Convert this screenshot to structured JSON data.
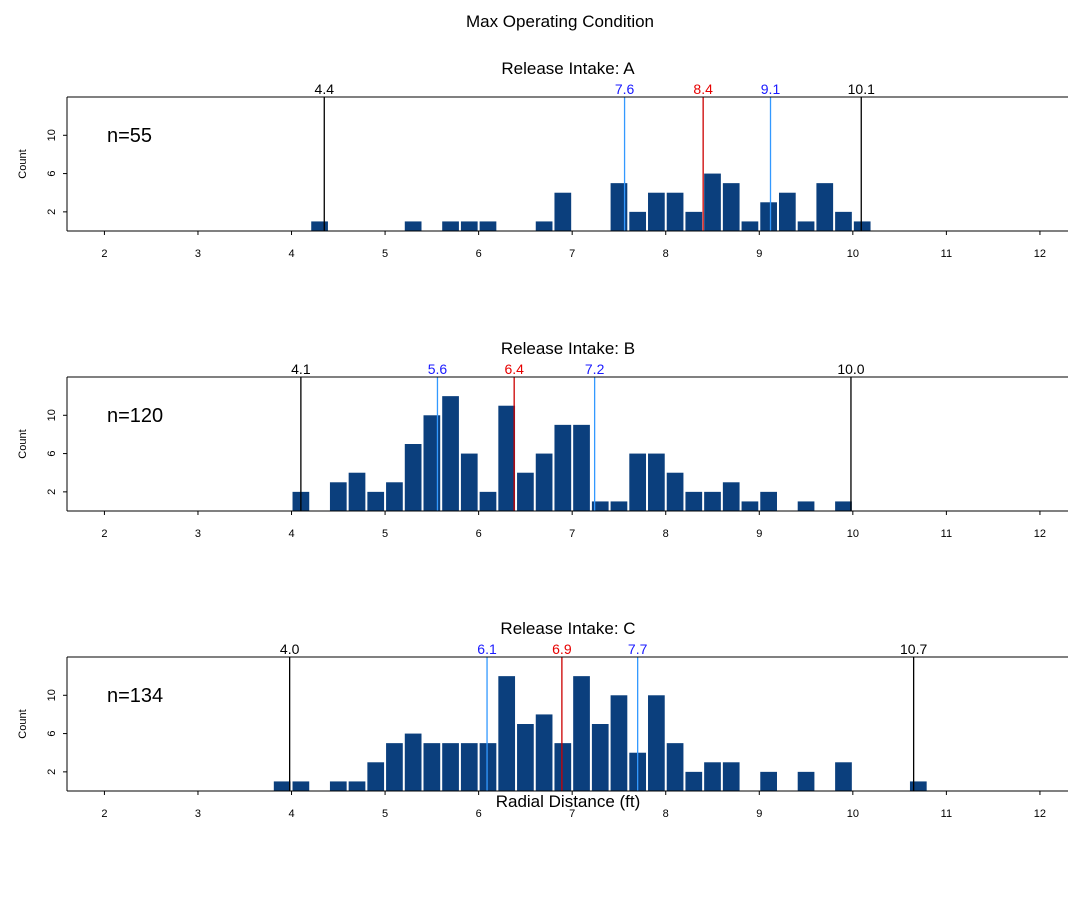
{
  "figure": {
    "title": "Max Operating Condition",
    "xlabel": "Radial Distance (ft)"
  },
  "chart_data": [
    {
      "type": "bar",
      "title": "Release Intake: A",
      "ylabel": "Count",
      "annotation": "n=55",
      "xlim": [
        1.6,
        12.3
      ],
      "ylim": [
        0,
        14
      ],
      "x_ticks": [
        2,
        3,
        4,
        5,
        6,
        7,
        8,
        9,
        10,
        11,
        12
      ],
      "y_ticks": [
        2,
        6,
        10
      ],
      "bin_width": 0.2,
      "bar_color": "#0b3f7d",
      "bins": [
        {
          "x": 4.2,
          "count": 1
        },
        {
          "x": 5.2,
          "count": 1
        },
        {
          "x": 5.6,
          "count": 1
        },
        {
          "x": 5.8,
          "count": 1
        },
        {
          "x": 6.0,
          "count": 1
        },
        {
          "x": 6.6,
          "count": 1
        },
        {
          "x": 6.8,
          "count": 4
        },
        {
          "x": 7.4,
          "count": 5
        },
        {
          "x": 7.6,
          "count": 2
        },
        {
          "x": 7.8,
          "count": 4
        },
        {
          "x": 8.0,
          "count": 4
        },
        {
          "x": 8.2,
          "count": 2
        },
        {
          "x": 8.4,
          "count": 6
        },
        {
          "x": 8.6,
          "count": 5
        },
        {
          "x": 8.8,
          "count": 1
        },
        {
          "x": 9.0,
          "count": 3
        },
        {
          "x": 9.2,
          "count": 4
        },
        {
          "x": 9.4,
          "count": 1
        },
        {
          "x": 9.6,
          "count": 5
        },
        {
          "x": 9.8,
          "count": 2
        },
        {
          "x": 10.0,
          "count": 1
        }
      ],
      "reference_lines": [
        {
          "x": 4.35,
          "label": "4.4",
          "color": "#000000",
          "line_color": "#000000"
        },
        {
          "x": 7.56,
          "label": "7.6",
          "color": "#1a1aff",
          "line_color": "#3399ff"
        },
        {
          "x": 8.4,
          "label": "8.4",
          "color": "#e60000",
          "line_color": "#cc0000"
        },
        {
          "x": 9.12,
          "label": "9.1",
          "color": "#1a1aff",
          "line_color": "#3399ff"
        },
        {
          "x": 10.09,
          "label": "10.1",
          "color": "#000000",
          "line_color": "#000000"
        }
      ]
    },
    {
      "type": "bar",
      "title": "Release Intake: B",
      "ylabel": "Count",
      "annotation": "n=120",
      "xlim": [
        1.6,
        12.3
      ],
      "ylim": [
        0,
        14
      ],
      "x_ticks": [
        2,
        3,
        4,
        5,
        6,
        7,
        8,
        9,
        10,
        11,
        12
      ],
      "y_ticks": [
        2,
        6,
        10
      ],
      "bin_width": 0.2,
      "bar_color": "#0b3f7d",
      "bins": [
        {
          "x": 4.0,
          "count": 2
        },
        {
          "x": 4.4,
          "count": 3
        },
        {
          "x": 4.6,
          "count": 4
        },
        {
          "x": 4.8,
          "count": 2
        },
        {
          "x": 5.0,
          "count": 3
        },
        {
          "x": 5.2,
          "count": 7
        },
        {
          "x": 5.4,
          "count": 10
        },
        {
          "x": 5.6,
          "count": 12
        },
        {
          "x": 5.8,
          "count": 6
        },
        {
          "x": 6.0,
          "count": 2
        },
        {
          "x": 6.2,
          "count": 11
        },
        {
          "x": 6.4,
          "count": 4
        },
        {
          "x": 6.6,
          "count": 6
        },
        {
          "x": 6.8,
          "count": 9
        },
        {
          "x": 7.0,
          "count": 9
        },
        {
          "x": 7.2,
          "count": 1
        },
        {
          "x": 7.4,
          "count": 1
        },
        {
          "x": 7.6,
          "count": 6
        },
        {
          "x": 7.8,
          "count": 6
        },
        {
          "x": 8.0,
          "count": 4
        },
        {
          "x": 8.2,
          "count": 2
        },
        {
          "x": 8.4,
          "count": 2
        },
        {
          "x": 8.6,
          "count": 3
        },
        {
          "x": 8.8,
          "count": 1
        },
        {
          "x": 9.0,
          "count": 2
        },
        {
          "x": 9.4,
          "count": 1
        },
        {
          "x": 9.8,
          "count": 1
        }
      ],
      "reference_lines": [
        {
          "x": 4.1,
          "label": "4.1",
          "color": "#000000",
          "line_color": "#000000"
        },
        {
          "x": 5.56,
          "label": "5.6",
          "color": "#1a1aff",
          "line_color": "#3399ff"
        },
        {
          "x": 6.38,
          "label": "6.4",
          "color": "#e60000",
          "line_color": "#cc0000"
        },
        {
          "x": 7.24,
          "label": "7.2",
          "color": "#1a1aff",
          "line_color": "#3399ff"
        },
        {
          "x": 9.98,
          "label": "10.0",
          "color": "#000000",
          "line_color": "#000000"
        }
      ]
    },
    {
      "type": "bar",
      "title": "Release Intake: C",
      "ylabel": "Count",
      "annotation": "n=134",
      "xlim": [
        1.6,
        12.3
      ],
      "ylim": [
        0,
        14
      ],
      "x_ticks": [
        2,
        3,
        4,
        5,
        6,
        7,
        8,
        9,
        10,
        11,
        12
      ],
      "y_ticks": [
        2,
        6,
        10
      ],
      "bin_width": 0.2,
      "bar_color": "#0b3f7d",
      "bins": [
        {
          "x": 3.8,
          "count": 1
        },
        {
          "x": 4.0,
          "count": 1
        },
        {
          "x": 4.4,
          "count": 1
        },
        {
          "x": 4.6,
          "count": 1
        },
        {
          "x": 4.8,
          "count": 3
        },
        {
          "x": 5.0,
          "count": 5
        },
        {
          "x": 5.2,
          "count": 6
        },
        {
          "x": 5.4,
          "count": 5
        },
        {
          "x": 5.6,
          "count": 5
        },
        {
          "x": 5.8,
          "count": 5
        },
        {
          "x": 6.0,
          "count": 5
        },
        {
          "x": 6.2,
          "count": 12
        },
        {
          "x": 6.4,
          "count": 7
        },
        {
          "x": 6.6,
          "count": 8
        },
        {
          "x": 6.8,
          "count": 5
        },
        {
          "x": 7.0,
          "count": 12
        },
        {
          "x": 7.2,
          "count": 7
        },
        {
          "x": 7.4,
          "count": 10
        },
        {
          "x": 7.6,
          "count": 4
        },
        {
          "x": 7.8,
          "count": 10
        },
        {
          "x": 8.0,
          "count": 5
        },
        {
          "x": 8.2,
          "count": 2
        },
        {
          "x": 8.4,
          "count": 3
        },
        {
          "x": 8.6,
          "count": 3
        },
        {
          "x": 9.0,
          "count": 2
        },
        {
          "x": 9.4,
          "count": 2
        },
        {
          "x": 9.8,
          "count": 3
        },
        {
          "x": 10.6,
          "count": 1
        }
      ],
      "reference_lines": [
        {
          "x": 3.98,
          "label": "4.0",
          "color": "#000000",
          "line_color": "#000000"
        },
        {
          "x": 6.09,
          "label": "6.1",
          "color": "#1a1aff",
          "line_color": "#3399ff"
        },
        {
          "x": 6.89,
          "label": "6.9",
          "color": "#e60000",
          "line_color": "#cc0000"
        },
        {
          "x": 7.7,
          "label": "7.7",
          "color": "#1a1aff",
          "line_color": "#3399ff"
        },
        {
          "x": 10.65,
          "label": "10.7",
          "color": "#000000",
          "line_color": "#000000"
        }
      ]
    }
  ]
}
